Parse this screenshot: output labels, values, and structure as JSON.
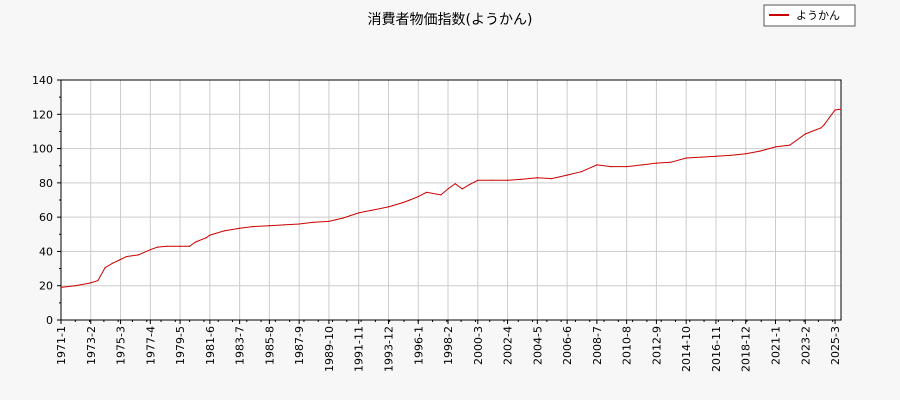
{
  "chart_data": {
    "type": "line",
    "title": "消費者物価指数(ようかん)",
    "xlabel": "",
    "ylabel": "",
    "ylim": [
      0,
      140
    ],
    "yticks": [
      0,
      20,
      40,
      60,
      80,
      100,
      120,
      140
    ],
    "x_tick_labels": [
      "1971-1",
      "1973-2",
      "1975-3",
      "1977-4",
      "1979-5",
      "1981-6",
      "1983-7",
      "1985-8",
      "1987-9",
      "1989-10",
      "1991-11",
      "1993-12",
      "1996-1",
      "1998-2",
      "2000-3",
      "2002-4",
      "2004-5",
      "2006-6",
      "2008-7",
      "2010-8",
      "2012-9",
      "2014-10",
      "2016-11",
      "2018-12",
      "2021-1",
      "2023-2",
      "2025-3"
    ],
    "grid": true,
    "legend_position": "top-right",
    "series": [
      {
        "name": "ようかん",
        "color": "#cc0000",
        "x": [
          "1971-1",
          "1972-1",
          "1973-1",
          "1973-8",
          "1974-2",
          "1974-8",
          "1975-2",
          "1975-8",
          "1976-6",
          "1977-4",
          "1977-10",
          "1978-6",
          "1979-5",
          "1980-1",
          "1980-6",
          "1981-3",
          "1981-6",
          "1982-6",
          "1983-7",
          "1984-6",
          "1985-8",
          "1986-8",
          "1987-9",
          "1988-9",
          "1989-10",
          "1990-10",
          "1991-11",
          "1992-10",
          "1993-12",
          "1994-12",
          "1995-6",
          "1996-1",
          "1996-8",
          "1997-8",
          "1998-2",
          "1998-8",
          "1999-2",
          "1999-8",
          "2000-3",
          "2001-3",
          "2002-4",
          "2003-3",
          "2004-5",
          "2005-5",
          "2006-6",
          "2007-6",
          "2008-7",
          "2009-7",
          "2010-8",
          "2011-9",
          "2012-9",
          "2013-9",
          "2014-10",
          "2015-11",
          "2016-11",
          "2017-11",
          "2018-12",
          "2019-12",
          "2021-1",
          "2022-1",
          "2023-2",
          "2024-3",
          "2024-6",
          "2025-3",
          "2025-8"
        ],
        "values": [
          19,
          20,
          21.5,
          23,
          30.5,
          33,
          35,
          37,
          38,
          41,
          42.5,
          43,
          43,
          43,
          45.5,
          48,
          49.5,
          52,
          53.5,
          54.5,
          55,
          55.5,
          56,
          57,
          57.5,
          59.5,
          62.5,
          64,
          66,
          68.5,
          70,
          72,
          74.5,
          73,
          76.5,
          79.5,
          76.5,
          79,
          81.5,
          81.5,
          81.5,
          82,
          83,
          82.5,
          84.5,
          86.5,
          90.5,
          89.5,
          89.5,
          90.5,
          91.5,
          92,
          94.5,
          95,
          95.5,
          96,
          97,
          98.5,
          101,
          102,
          108.5,
          112,
          114,
          122.5,
          123
        ]
      }
    ]
  }
}
